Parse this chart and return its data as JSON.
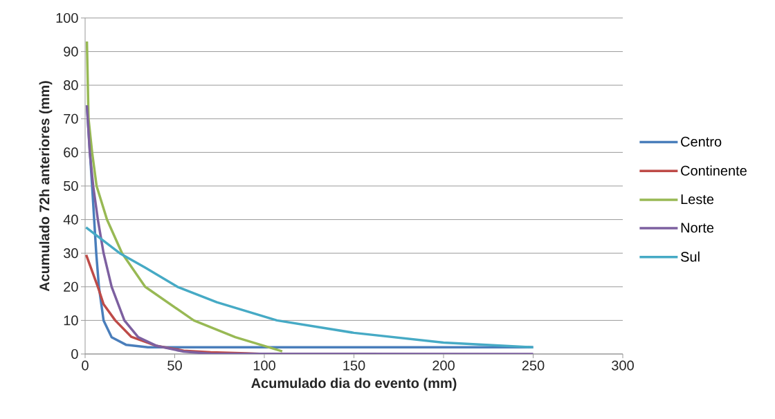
{
  "chart_data": {
    "type": "line",
    "xlabel": "Acumulado dia do evento (mm)",
    "ylabel": "Acumulado 72h anteriores (mm)",
    "xlim": [
      0,
      300
    ],
    "xticks": [
      0,
      50,
      100,
      150,
      200,
      250,
      300
    ],
    "ylim": [
      0,
      100
    ],
    "yticks": [
      0,
      10,
      20,
      30,
      40,
      50,
      60,
      70,
      80,
      90,
      100
    ],
    "grid": "y",
    "legend": "right",
    "series": [
      {
        "name": "Centro",
        "color": "#4a7ebb",
        "x": [
          1,
          3.9,
          6.2,
          7.7,
          10.3,
          14.8,
          23,
          35,
          100,
          250
        ],
        "values": [
          74,
          50,
          30,
          20,
          10,
          5,
          2.7,
          2,
          2,
          2
        ]
      },
      {
        "name": "Continente",
        "color": "#be4b48",
        "x": [
          0.6,
          7.1,
          10.3,
          16.8,
          25.8,
          40,
          55,
          70,
          90,
          100
        ],
        "values": [
          29.5,
          20,
          14.8,
          10,
          5.1,
          2.4,
          1,
          0.5,
          0.2,
          0
        ]
      },
      {
        "name": "Leste",
        "color": "#98b954",
        "x": [
          1,
          1.9,
          3.9,
          6.4,
          12.2,
          20.6,
          33.5,
          60.6,
          83.8,
          110
        ],
        "values": [
          93,
          70,
          60,
          50,
          40,
          30,
          20,
          10,
          5,
          0.8
        ]
      },
      {
        "name": "Norte",
        "color": "#7d60a0",
        "x": [
          1,
          2.6,
          4.5,
          7.1,
          10.3,
          14.8,
          21.9,
          29.6,
          40,
          55,
          70,
          250
        ],
        "values": [
          74,
          60,
          50,
          40,
          30,
          20,
          10,
          5,
          2.4,
          0.7,
          0.1,
          0
        ]
      },
      {
        "name": "Sul",
        "color": "#46aac5",
        "x": [
          0.5,
          19.3,
          33.5,
          51.5,
          73.5,
          107,
          150,
          200,
          250
        ],
        "values": [
          37.7,
          30,
          25.7,
          20,
          15.4,
          10,
          6.3,
          3.4,
          2
        ]
      }
    ]
  }
}
